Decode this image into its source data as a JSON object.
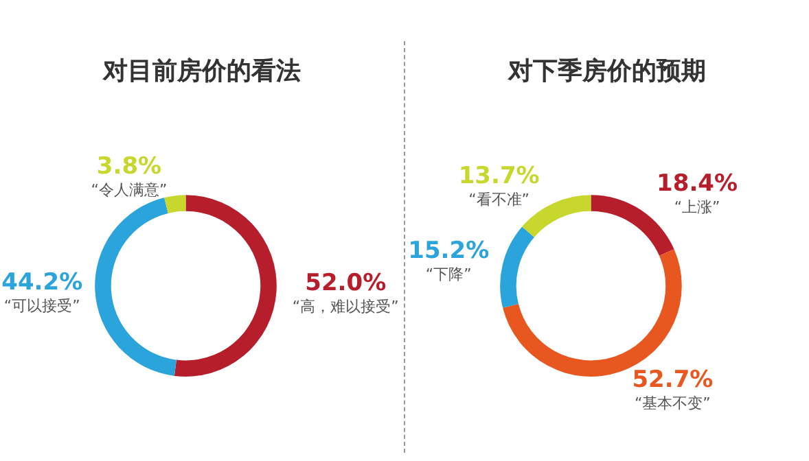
{
  "chart_data": [
    {
      "type": "donut",
      "title": "对目前房价的看法",
      "categories": [
        "“高，难以接受”",
        "“可以接受”",
        "“令人满意”"
      ],
      "values": [
        52.0,
        44.2,
        3.8
      ],
      "value_labels": [
        "52.0%",
        "44.2%",
        "3.8%"
      ],
      "colors": [
        "#b71e2c",
        "#2ba4dc",
        "#c8d72e"
      ]
    },
    {
      "type": "donut",
      "title": "对下季房价的预期",
      "categories": [
        "“上涨”",
        "“基本不变”",
        "“下降”",
        "“看不准”"
      ],
      "values": [
        18.4,
        52.7,
        15.2,
        13.7
      ],
      "value_labels": [
        "18.4%",
        "52.7%",
        "15.2%",
        "13.7%"
      ],
      "colors": [
        "#b71e2c",
        "#e8571f",
        "#2ba4dc",
        "#c8d72e"
      ]
    }
  ]
}
